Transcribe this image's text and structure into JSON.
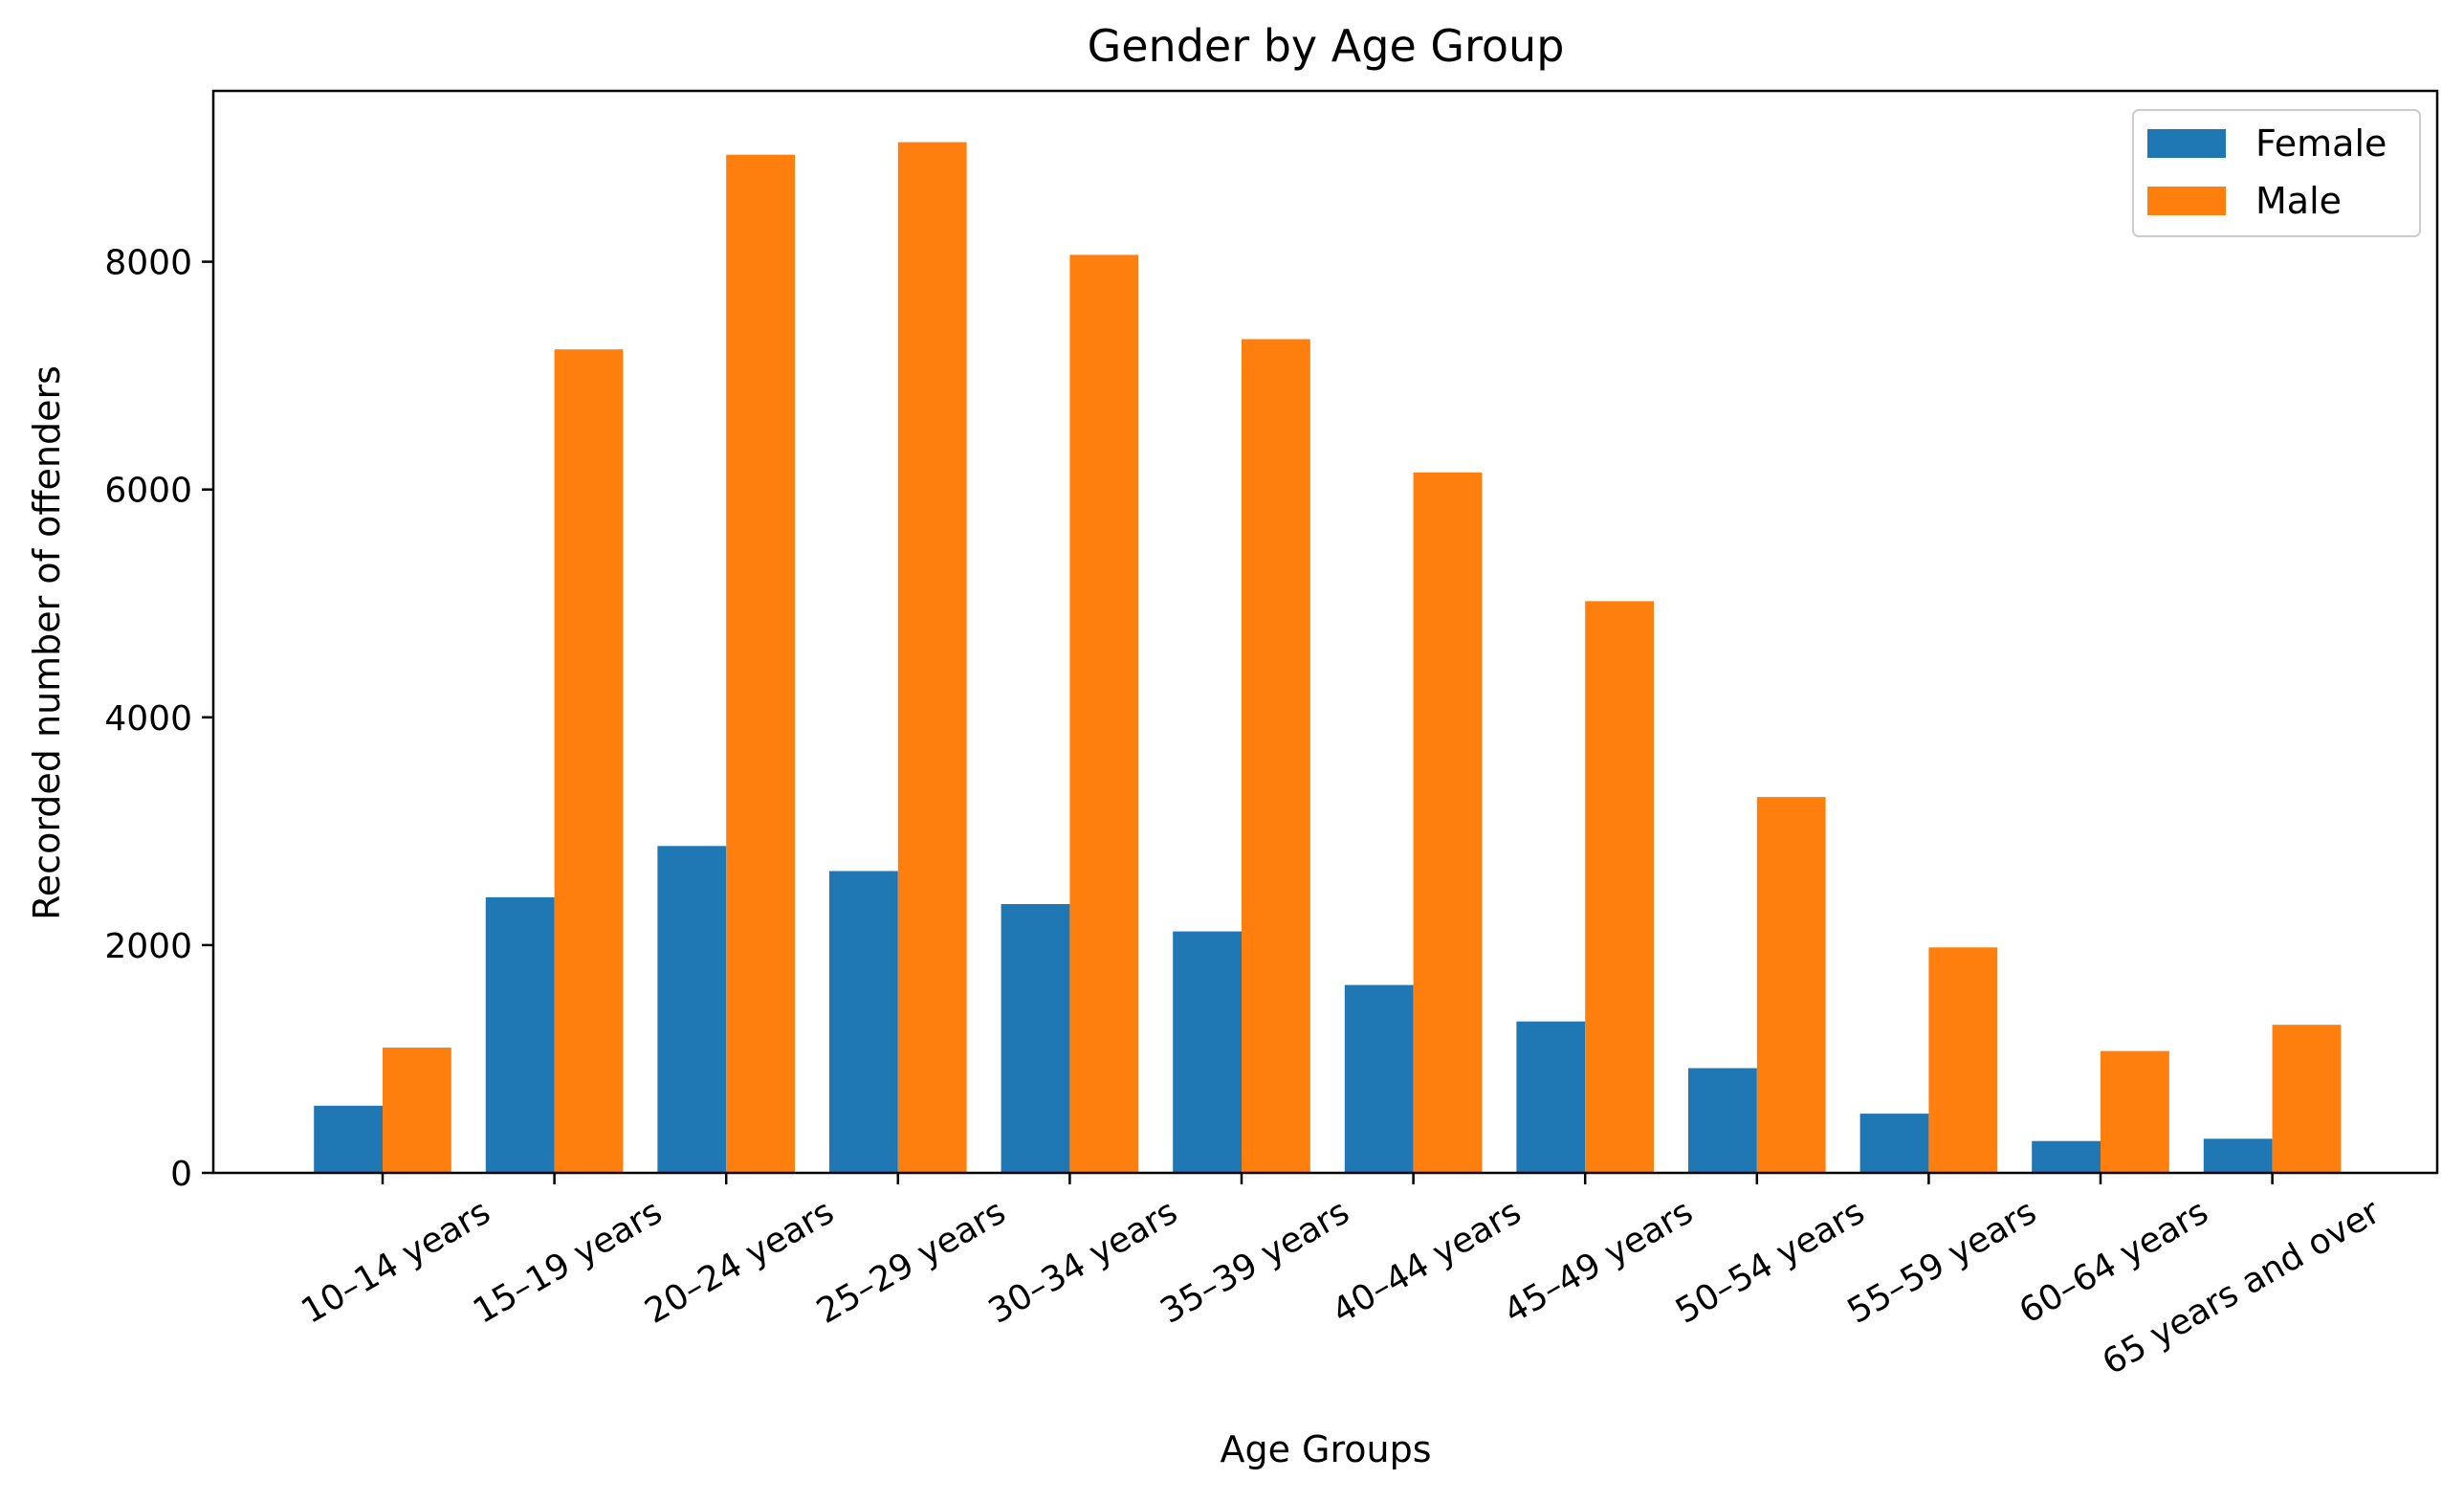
{
  "chart_data": {
    "type": "bar",
    "title": "Gender by Age Group",
    "xlabel": "Age Groups",
    "ylabel": "Recorded number of offenders",
    "categories": [
      "10–14 years",
      "15–19 years",
      "20–24 years",
      "25–29 years",
      "30–34 years",
      "35–39 years",
      "40–44 years",
      "45–49 years",
      "50–54 years",
      "55–59 years",
      "60–64 years",
      "65 years and over"
    ],
    "series": [
      {
        "name": "Female",
        "color": "#1f77b4",
        "values": [
          590,
          2420,
          2870,
          2650,
          2360,
          2120,
          1650,
          1330,
          920,
          520,
          280,
          300
        ]
      },
      {
        "name": "Male",
        "color": "#ff7f0e",
        "values": [
          1100,
          7230,
          8940,
          9050,
          8060,
          7320,
          6150,
          5020,
          3300,
          1980,
          1070,
          1300
        ]
      }
    ],
    "ylim": [
      0,
      9500
    ],
    "yticks": [
      0,
      2000,
      4000,
      6000,
      8000
    ],
    "grid": false,
    "legend_position": "top-right"
  }
}
